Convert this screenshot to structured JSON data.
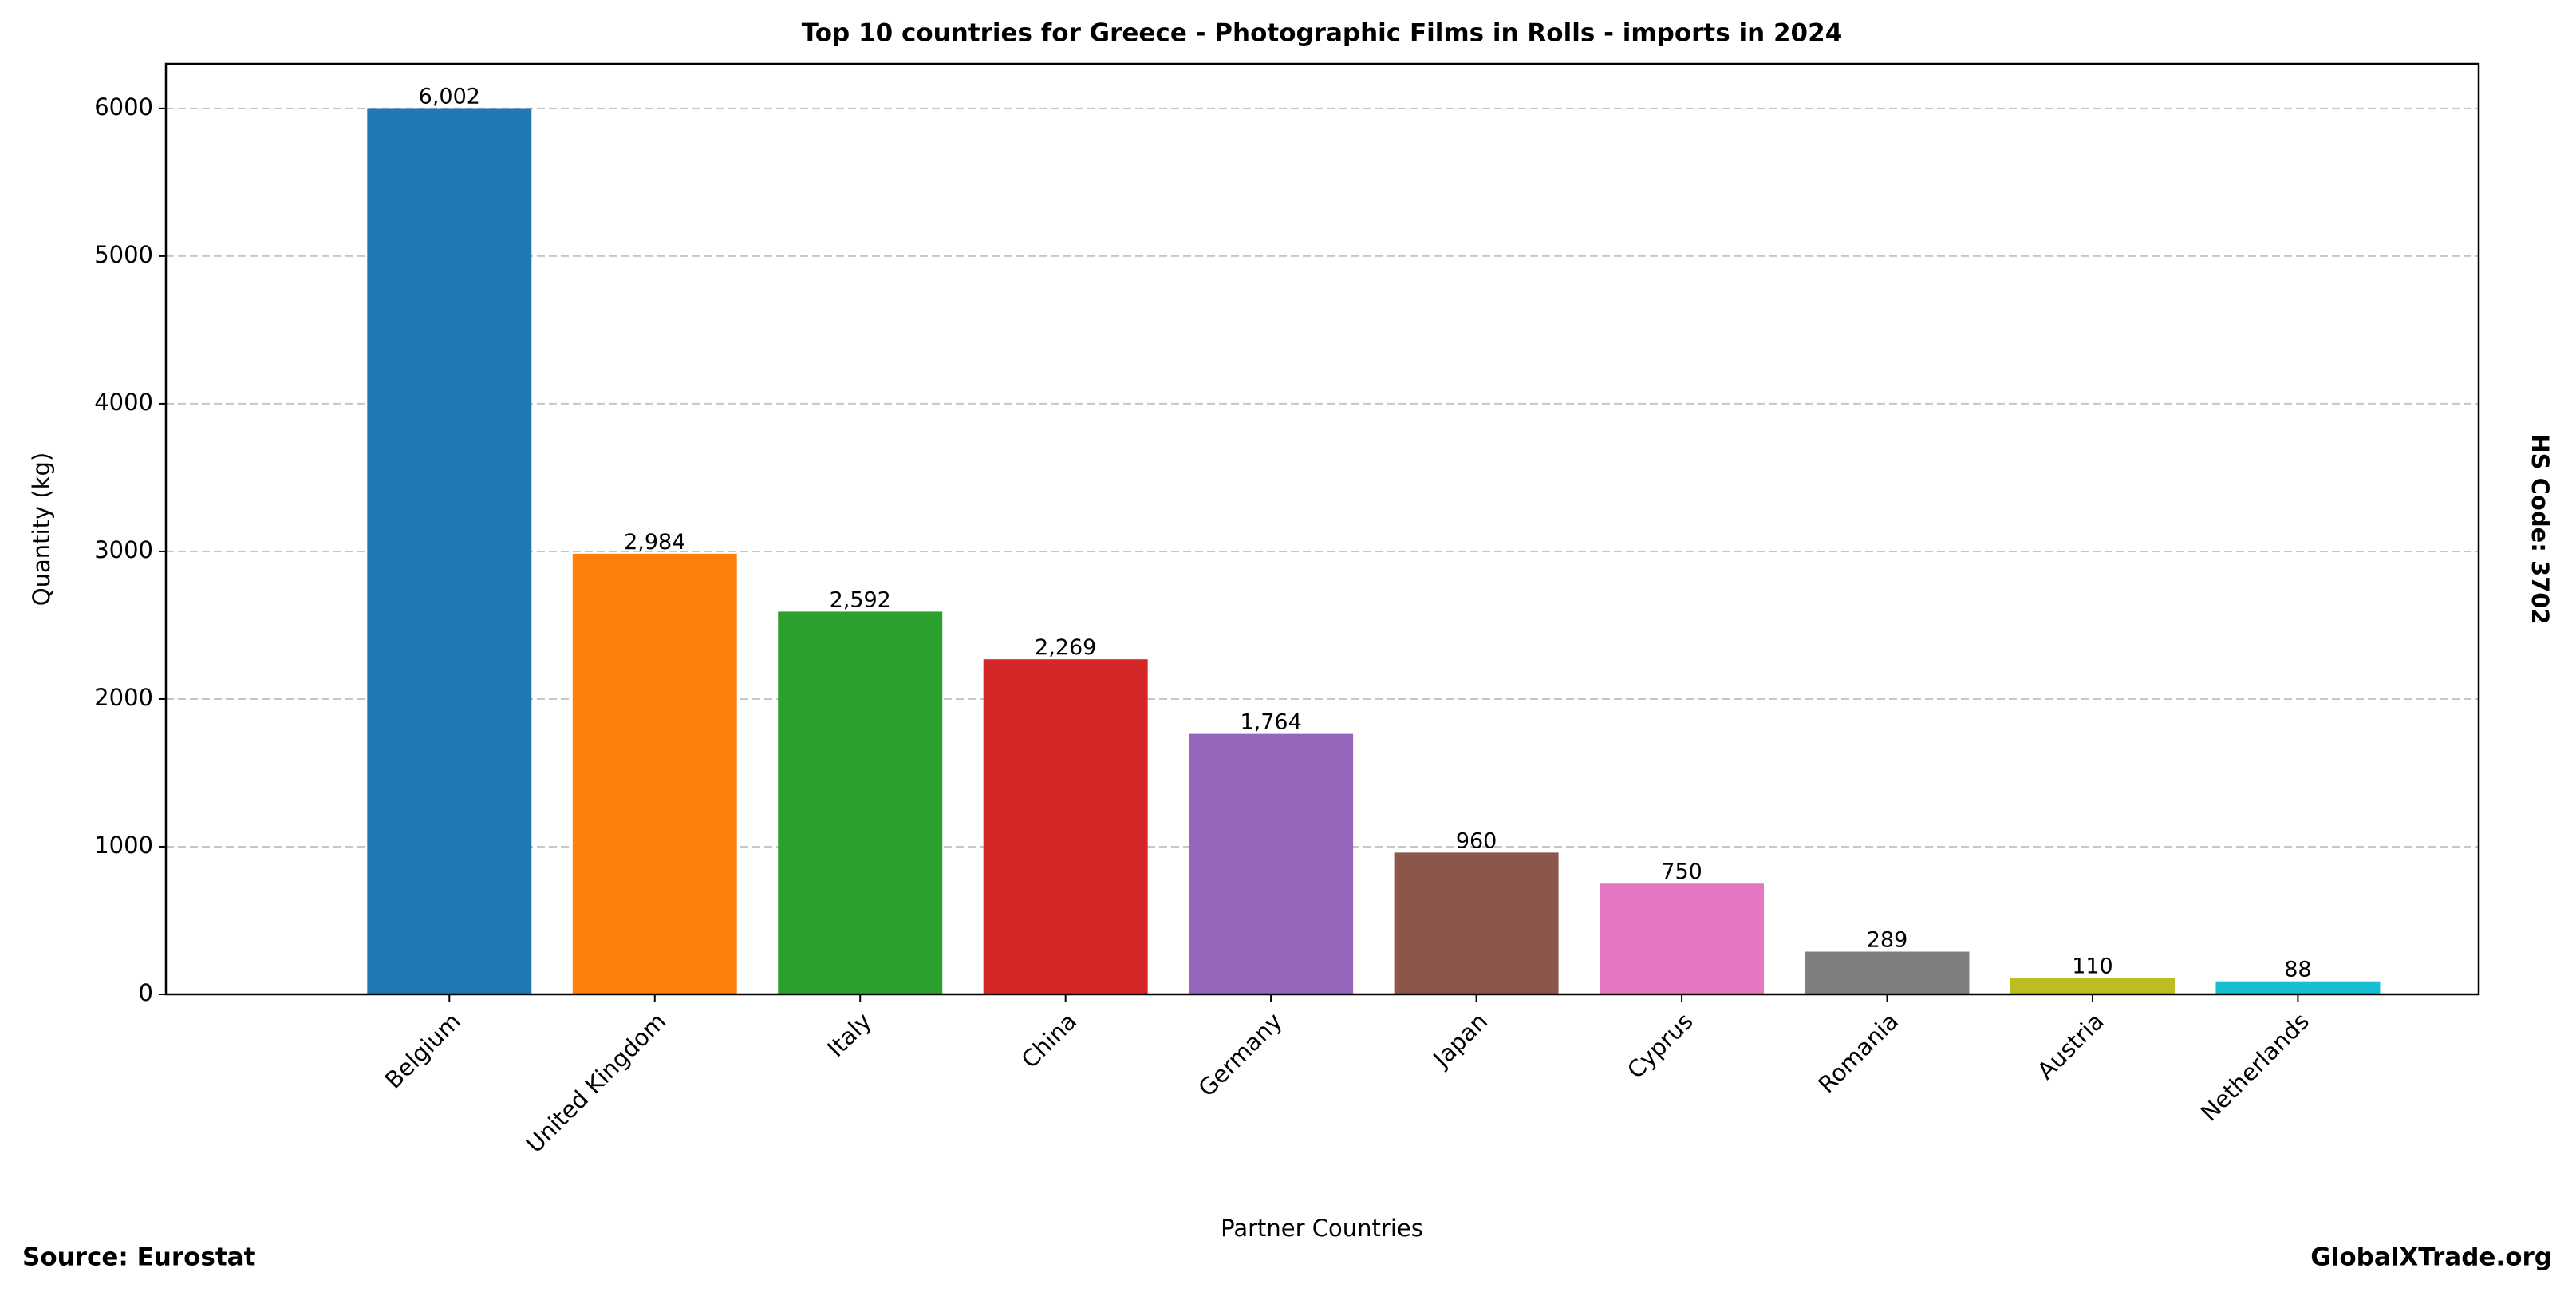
{
  "chart_data": {
    "type": "bar",
    "title": "Top 10 countries for Greece - Photographic Films in Rolls - imports in 2024",
    "x_label": "Partner Countries",
    "y_label": "Quantity (kg)",
    "side_note": "HS Code: 3702",
    "source": "Source: Eurostat",
    "brand": "GlobalXTrade.org",
    "categories": [
      "Belgium",
      "United Kingdom",
      "Italy",
      "China",
      "Germany",
      "Japan",
      "Cyprus",
      "Romania",
      "Austria",
      "Netherlands"
    ],
    "values": [
      6002,
      2984,
      2592,
      2269,
      1764,
      960,
      750,
      289,
      110,
      88
    ],
    "value_labels": [
      "6,002",
      "2,984",
      "2,592",
      "2,269",
      "1,764",
      "960",
      "750",
      "289",
      "110",
      "88"
    ],
    "colors": [
      "#1f77b4",
      "#ff7f0e",
      "#2ca02c",
      "#d62728",
      "#9467bd",
      "#8c564b",
      "#e377c2",
      "#7f7f7f",
      "#bcbd22",
      "#17becf"
    ],
    "ylim": [
      0,
      6302
    ],
    "yticks": [
      0,
      1000,
      2000,
      3000,
      4000,
      5000,
      6000
    ],
    "grid": true
  }
}
